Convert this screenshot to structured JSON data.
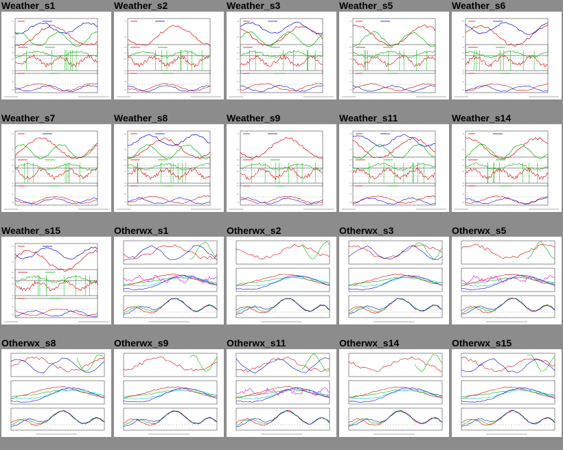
{
  "gallery": {
    "items": [
      {
        "label": "Weather_s1",
        "style": "weather"
      },
      {
        "label": "Weather_s2",
        "style": "weather"
      },
      {
        "label": "Weather_s3",
        "style": "weather"
      },
      {
        "label": "Weather_s5",
        "style": "weather"
      },
      {
        "label": "Weather_s6",
        "style": "weather"
      },
      {
        "label": "Weather_s7",
        "style": "weather"
      },
      {
        "label": "Weather_s8",
        "style": "weather"
      },
      {
        "label": "Weather_s9",
        "style": "weather"
      },
      {
        "label": "Weather_s11",
        "style": "weather"
      },
      {
        "label": "Weather_s14",
        "style": "weather"
      },
      {
        "label": "Weather_s15",
        "style": "weather"
      },
      {
        "label": "Otherwx_s1",
        "style": "otherwx"
      },
      {
        "label": "Otherwx_s2",
        "style": "otherwx"
      },
      {
        "label": "Otherwx_s3",
        "style": "otherwx"
      },
      {
        "label": "Otherwx_s5",
        "style": "otherwx"
      },
      {
        "label": "Otherwx_s8",
        "style": "otherwx"
      },
      {
        "label": "Otherwx_s9",
        "style": "otherwx"
      },
      {
        "label": "Otherwx_s11",
        "style": "otherwx"
      },
      {
        "label": "Otherwx_s14",
        "style": "otherwx"
      },
      {
        "label": "Otherwx_s15",
        "style": "otherwx"
      }
    ]
  },
  "colors": {
    "background": "#8c8c8c",
    "panel": "#ffffff",
    "series_red": "#e00000",
    "series_green": "#00b000",
    "series_blue": "#0000e0",
    "series_cyan": "#00c8e8",
    "series_magenta": "#e000e0",
    "series_purple": "#8000a0"
  }
}
